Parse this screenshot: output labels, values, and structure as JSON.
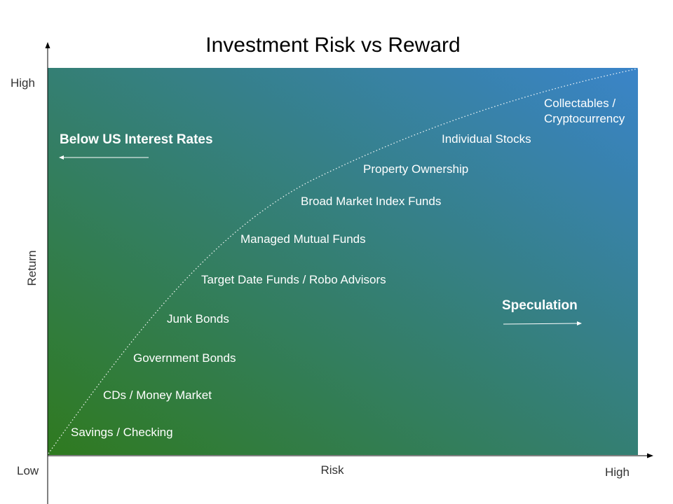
{
  "title": "Investment Risk vs Reward",
  "axes": {
    "y_label": "Return",
    "y_high": "High",
    "x_label": "Risk",
    "x_high": "High",
    "origin": "Low"
  },
  "zones": {
    "left": "Below US Interest Rates",
    "right": "Speculation"
  },
  "investments": [
    "Savings / Checking",
    "CDs / Money Market",
    "Government Bonds",
    "Junk Bonds",
    "Target Date Funds / Robo Advisors",
    "Managed Mutual Funds",
    "Broad Market Index Funds",
    "Property Ownership",
    "Individual Stocks",
    [
      "Collectables /",
      "Cryptocurrency"
    ]
  ],
  "colors": {
    "gradient_start": "#2f7a1f",
    "gradient_end": "#3a84c9",
    "label": "#ffffff",
    "curve": "#ffffff"
  }
}
